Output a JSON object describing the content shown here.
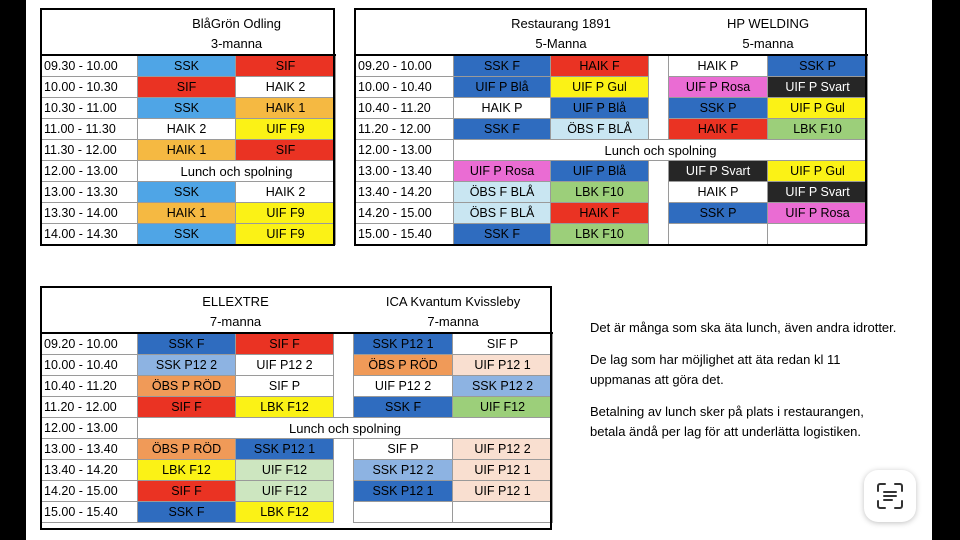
{
  "colors": {
    "blue_light": "#4fa5e6",
    "blue_dark": "#2f6cbf",
    "red": "#ea3323",
    "yellow": "#fbf216",
    "orange": "#f5b942",
    "orange_dark": "#f09a58",
    "pink": "#ea6cd3",
    "black": "#262626",
    "green": "#9ccf7a",
    "ice": "#c9e6f2",
    "green_pale": "#cde6c0",
    "peach": "#f9dfd0",
    "steel": "#8db3e2",
    "white": "#ffffff"
  },
  "tables": [
    {
      "name": "BlåGrön Odling",
      "capacity": "3-manna",
      "rows": [
        {
          "time": "09.30 - 10.00",
          "cells": [
            [
              "SSK",
              "blue_light"
            ],
            [
              "SIF",
              "red"
            ]
          ]
        },
        {
          "time": "10.00 - 10.30",
          "cells": [
            [
              "SIF",
              "red"
            ],
            [
              "HAIK 2",
              "white"
            ]
          ]
        },
        {
          "time": "10.30 - 11.00",
          "cells": [
            [
              "SSK",
              "blue_light"
            ],
            [
              "HAIK 1",
              "orange"
            ]
          ]
        },
        {
          "time": "11.00 - 11.30",
          "cells": [
            [
              "HAIK 2",
              "white"
            ],
            [
              "UIF F9",
              "yellow"
            ]
          ]
        },
        {
          "time": "11.30 - 12.00",
          "cells": [
            [
              "HAIK 1",
              "orange"
            ],
            [
              "SIF",
              "red"
            ]
          ]
        },
        {
          "time": "12.00 - 13.00",
          "lunch": "Lunch och spolning"
        },
        {
          "time": "13.00 - 13.30",
          "cells": [
            [
              "SSK",
              "blue_light"
            ],
            [
              "HAIK 2",
              "white"
            ]
          ]
        },
        {
          "time": "13.30 - 14.00",
          "cells": [
            [
              "HAIK 1",
              "orange"
            ],
            [
              "UIF F9",
              "yellow"
            ]
          ]
        },
        {
          "time": "14.00 - 14.30",
          "cells": [
            [
              "SSK",
              "blue_light"
            ],
            [
              "UIF F9",
              "yellow"
            ]
          ]
        }
      ]
    },
    {
      "name": "Restaurang 1891",
      "capacity": "5-Manna",
      "name2": "HP WELDING",
      "capacity2": "5-manna",
      "rows": [
        {
          "time": "09.20 - 10.00",
          "cells": [
            [
              "SSK F",
              "blue_dark"
            ],
            [
              "HAIK F",
              "red"
            ]
          ],
          "cells2": [
            [
              "HAIK P",
              "white"
            ],
            [
              "SSK P",
              "blue_dark"
            ]
          ]
        },
        {
          "time": "10.00 - 10.40",
          "cells": [
            [
              "UIF P Blå",
              "blue_dark"
            ],
            [
              "UIF P Gul",
              "yellow"
            ]
          ],
          "cells2": [
            [
              "UIF P Rosa",
              "pink"
            ],
            [
              "UIF P Svart",
              "black"
            ]
          ]
        },
        {
          "time": "10.40 - 11.20",
          "cells": [
            [
              "HAIK P",
              "white"
            ],
            [
              "UIF P Blå",
              "blue_dark"
            ]
          ],
          "cells2": [
            [
              "SSK P",
              "blue_dark"
            ],
            [
              "UIF P Gul",
              "yellow"
            ]
          ]
        },
        {
          "time": "11.20 - 12.00",
          "cells": [
            [
              "SSK F",
              "blue_dark"
            ],
            [
              "ÖBS F BLÅ",
              "ice"
            ]
          ],
          "cells2": [
            [
              "HAIK F",
              "red"
            ],
            [
              "LBK F10",
              "green"
            ]
          ]
        },
        {
          "time": "12.00 - 13.00",
          "lunch": "Lunch och spolning"
        },
        {
          "time": "13.00 - 13.40",
          "cells": [
            [
              "UIF  P Rosa",
              "pink"
            ],
            [
              "UIF P Blå",
              "blue_dark"
            ]
          ],
          "cells2": [
            [
              "UIF P Svart",
              "black"
            ],
            [
              "UIF P Gul",
              "yellow"
            ]
          ]
        },
        {
          "time": "13.40 - 14.20",
          "cells": [
            [
              "ÖBS F BLÅ",
              "ice"
            ],
            [
              "LBK F10",
              "green"
            ]
          ],
          "cells2": [
            [
              "HAIK P",
              "white"
            ],
            [
              "UIF P Svart",
              "black"
            ]
          ]
        },
        {
          "time": "14.20 - 15.00",
          "cells": [
            [
              "ÖBS F BLÅ",
              "ice"
            ],
            [
              "HAIK F",
              "red"
            ]
          ],
          "cells2": [
            [
              "SSK P",
              "blue_dark"
            ],
            [
              "UIF P Rosa",
              "pink"
            ]
          ]
        },
        {
          "time": "15.00 - 15.40",
          "cells": [
            [
              "SSK F",
              "blue_dark"
            ],
            [
              "LBK F10",
              "green"
            ]
          ],
          "cells2": [
            [
              "",
              "white"
            ],
            [
              "",
              "white"
            ]
          ]
        }
      ]
    },
    {
      "name": "ELLEXTRE",
      "capacity": "7-manna",
      "name2": "ICA Kvantum Kvissleby",
      "capacity2": "7-manna",
      "rows": [
        {
          "time": "09.20 - 10.00",
          "cells": [
            [
              "SSK F",
              "blue_dark"
            ],
            [
              "SIF F",
              "red"
            ]
          ],
          "cells2": [
            [
              "SSK P12 1",
              "blue_dark"
            ],
            [
              "SIF P",
              "white"
            ]
          ]
        },
        {
          "time": "10.00 - 10.40",
          "cells": [
            [
              "SSK P12 2",
              "steel"
            ],
            [
              "UIF P12 2",
              "white"
            ]
          ],
          "cells2": [
            [
              "ÖBS P RÖD",
              "orange_dark"
            ],
            [
              "UIF P12 1",
              "peach"
            ]
          ]
        },
        {
          "time": "10.40 - 11.20",
          "cells": [
            [
              "ÖBS P RÖD",
              "orange_dark"
            ],
            [
              "SIF P",
              "white"
            ]
          ],
          "cells2": [
            [
              "UIF P12 2",
              "white"
            ],
            [
              "SSK P12 2",
              "steel"
            ]
          ]
        },
        {
          "time": "11.20 - 12.00",
          "cells": [
            [
              "SIF F",
              "red"
            ],
            [
              "LBK F12",
              "yellow"
            ]
          ],
          "cells2": [
            [
              "SSK F",
              "blue_dark"
            ],
            [
              "UIF F12",
              "green"
            ]
          ]
        },
        {
          "time": "12.00 - 13.00",
          "lunch": "Lunch och spolning"
        },
        {
          "time": "13.00 - 13.40",
          "cells": [
            [
              "ÖBS P RÖD",
              "orange_dark"
            ],
            [
              "SSK P12 1",
              "blue_dark"
            ]
          ],
          "cells2": [
            [
              "SIF P",
              "white"
            ],
            [
              "UIF P12 2",
              "peach"
            ]
          ]
        },
        {
          "time": "13.40 - 14.20",
          "cells": [
            [
              "LBK F12",
              "yellow"
            ],
            [
              "UIF F12",
              "green_pale"
            ]
          ],
          "cells2": [
            [
              "SSK P12 2",
              "steel"
            ],
            [
              "UIF P12 1",
              "peach"
            ]
          ]
        },
        {
          "time": "14.20 - 15.00",
          "cells": [
            [
              "SIF F",
              "red"
            ],
            [
              "UIF F12",
              "green_pale"
            ]
          ],
          "cells2": [
            [
              "SSK P12 1",
              "blue_dark"
            ],
            [
              "UIF P12 1",
              "peach"
            ]
          ]
        },
        {
          "time": "15.00 - 15.40",
          "cells": [
            [
              "SSK F",
              "blue_dark"
            ],
            [
              "LBK F12",
              "yellow"
            ]
          ],
          "cells2": [
            [
              "",
              "white"
            ],
            [
              "",
              "white"
            ]
          ]
        }
      ]
    }
  ],
  "notes": [
    "Det är många som ska äta lunch, även andra idrotter.",
    "De lag som har möjlighet att äta redan kl 11\nuppmanas att göra det.",
    "Betalning av lunch sker på plats i restaurangen,\n betala ändå per lag för att underlätta logistiken."
  ],
  "scan_button": {
    "icon": "text-scan-icon"
  }
}
